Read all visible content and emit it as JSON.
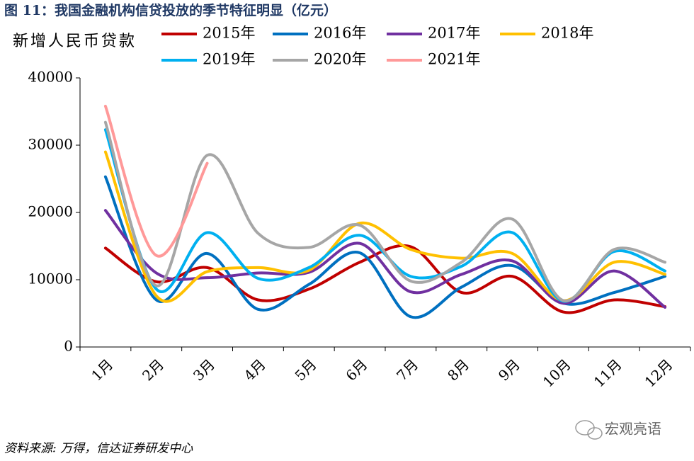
{
  "chart_data": {
    "type": "line",
    "title": "图 11：我国金融机构信贷投放的季节特征明显（亿元）",
    "y_label": "新增人民币贷款",
    "source": "资料来源: 万得，信达证券研发中心",
    "watermark": "宏观亮语",
    "categories": [
      "1月",
      "2月",
      "3月",
      "4月",
      "5月",
      "6月",
      "7月",
      "8月",
      "9月",
      "10月",
      "11月",
      "12月"
    ],
    "ylim": [
      0,
      40000
    ],
    "yticks": [
      0,
      10000,
      20000,
      30000,
      40000
    ],
    "grid": false,
    "smooth": true,
    "series": [
      {
        "name": "2015年",
        "color": "#c00000",
        "values": [
          14700,
          9700,
          11800,
          7000,
          8600,
          12600,
          14900,
          8100,
          10500,
          5200,
          7000,
          6000
        ]
      },
      {
        "name": "2016年",
        "color": "#0070c0",
        "values": [
          25300,
          7000,
          13900,
          5600,
          9300,
          14000,
          4500,
          8900,
          12100,
          6500,
          8100,
          10500
        ]
      },
      {
        "name": "2017年",
        "color": "#7030a0",
        "values": [
          20300,
          11000,
          10300,
          11000,
          11100,
          15400,
          8200,
          10800,
          12800,
          6500,
          11300,
          5900
        ]
      },
      {
        "name": "2018年",
        "color": "#ffc000",
        "values": [
          29000,
          7600,
          11200,
          11800,
          11400,
          18400,
          14500,
          13200,
          13900,
          6900,
          12600,
          10800
        ]
      },
      {
        "name": "2019年",
        "color": "#00b0f0",
        "values": [
          32300,
          8600,
          17000,
          10200,
          11800,
          16600,
          10500,
          12000,
          17000,
          6800,
          14200,
          11300
        ]
      },
      {
        "name": "2020年",
        "color": "#a6a6a6",
        "values": [
          33400,
          9100,
          28500,
          16900,
          14800,
          18100,
          9800,
          12600,
          19000,
          6900,
          14500,
          12600
        ]
      },
      {
        "name": "2021年",
        "color": "#ff9999",
        "values": [
          35800,
          13600,
          27300,
          null,
          null,
          null,
          null,
          null,
          null,
          null,
          null,
          null
        ]
      }
    ]
  }
}
